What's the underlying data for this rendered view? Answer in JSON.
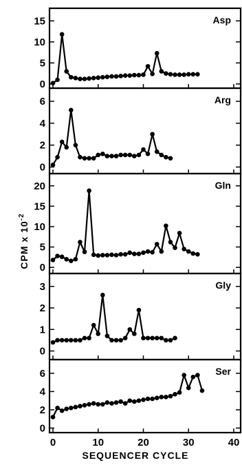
{
  "chart_data": {
    "type": "line",
    "layout": "stacked panels sharing x axis",
    "xlabel": "SEQUENCER CYCLE",
    "ylabel": "CPM x 10",
    "ylabel_exponent": "-2",
    "xlim": [
      0,
      40
    ],
    "x_ticks": [
      "0",
      "10",
      "20",
      "30",
      "40"
    ],
    "grid": false,
    "panels": [
      {
        "name": "Asp",
        "ylim": [
          -1,
          18
        ],
        "y_ticks": [
          "0",
          "5",
          "10",
          "15"
        ],
        "x": [
          0,
          1,
          2,
          3,
          4,
          5,
          6,
          7,
          8,
          9,
          10,
          11,
          12,
          13,
          14,
          15,
          16,
          17,
          18,
          19,
          20,
          21,
          22,
          23,
          24,
          25,
          26,
          27,
          28,
          29,
          30,
          31,
          32
        ],
        "values": [
          0.2,
          1.0,
          11.8,
          3.0,
          1.6,
          1.4,
          1.2,
          1.2,
          1.3,
          1.4,
          1.5,
          1.6,
          1.7,
          1.8,
          1.8,
          1.9,
          2.0,
          2.0,
          2.1,
          2.1,
          2.2,
          4.2,
          2.4,
          7.3,
          3.0,
          2.5,
          2.3,
          2.2,
          2.2,
          2.2,
          2.3,
          2.3,
          2.3
        ]
      },
      {
        "name": "Arg",
        "ylim": [
          -0.6,
          7.2
        ],
        "y_ticks": [
          "0",
          "2",
          "4",
          "6"
        ],
        "x": [
          0,
          1,
          2,
          3,
          4,
          5,
          6,
          7,
          8,
          9,
          10,
          11,
          12,
          13,
          14,
          15,
          16,
          17,
          18,
          19,
          20,
          21,
          22,
          23,
          24,
          25,
          26
        ],
        "values": [
          0.2,
          0.9,
          2.3,
          1.8,
          5.2,
          2.0,
          0.9,
          0.8,
          0.8,
          0.8,
          1.1,
          1.2,
          1.0,
          1.0,
          1.0,
          1.1,
          1.1,
          1.1,
          1.0,
          1.1,
          1.6,
          1.2,
          3.0,
          1.4,
          1.1,
          0.9,
          0.8
        ]
      },
      {
        "name": "Gln",
        "ylim": [
          -1.5,
          23
        ],
        "y_ticks": [
          "0",
          "5",
          "10",
          "15",
          "20"
        ],
        "x": [
          0,
          1,
          2,
          3,
          4,
          5,
          6,
          7,
          8,
          9,
          10,
          11,
          12,
          13,
          14,
          15,
          16,
          17,
          18,
          19,
          20,
          21,
          22,
          23,
          24,
          25,
          26,
          27,
          28,
          29,
          30,
          31,
          32
        ],
        "values": [
          1.8,
          2.8,
          2.6,
          2.0,
          1.6,
          2.0,
          6.2,
          3.8,
          18.8,
          3.1,
          2.9,
          3.0,
          3.0,
          3.1,
          3.0,
          3.2,
          3.2,
          3.6,
          3.3,
          3.3,
          3.6,
          3.9,
          3.7,
          5.7,
          3.9,
          10.2,
          6.2,
          4.8,
          8.4,
          4.5,
          3.9,
          3.4,
          3.2
        ]
      },
      {
        "name": "Gly",
        "ylim": [
          -0.4,
          3.6
        ],
        "y_ticks": [
          "0",
          "1",
          "2",
          "3"
        ],
        "x": [
          0,
          1,
          2,
          3,
          4,
          5,
          6,
          7,
          8,
          9,
          10,
          11,
          12,
          13,
          14,
          15,
          16,
          17,
          18,
          19,
          20,
          21,
          22,
          23,
          24,
          25,
          26,
          27
        ],
        "values": [
          0.4,
          0.5,
          0.5,
          0.5,
          0.5,
          0.5,
          0.5,
          0.6,
          0.6,
          1.2,
          0.8,
          2.6,
          0.7,
          0.5,
          0.5,
          0.5,
          0.6,
          1.0,
          0.8,
          1.9,
          0.6,
          0.6,
          0.6,
          0.6,
          0.6,
          0.5,
          0.5,
          0.6
        ]
      },
      {
        "name": "Ser",
        "ylim": [
          -0.5,
          7.5
        ],
        "y_ticks": [
          "0",
          "2",
          "4",
          "6"
        ],
        "x": [
          0,
          1,
          2,
          3,
          4,
          5,
          6,
          7,
          8,
          9,
          10,
          11,
          12,
          13,
          14,
          15,
          16,
          17,
          18,
          19,
          20,
          21,
          22,
          23,
          24,
          25,
          26,
          27,
          28,
          29,
          30,
          31,
          32,
          33
        ],
        "values": [
          1.2,
          2.2,
          1.9,
          2.1,
          2.2,
          2.3,
          2.4,
          2.5,
          2.6,
          2.7,
          2.6,
          2.6,
          2.8,
          2.7,
          2.8,
          2.9,
          2.7,
          3.0,
          2.9,
          3.0,
          3.1,
          3.2,
          3.2,
          3.3,
          3.4,
          3.4,
          3.5,
          3.7,
          3.9,
          5.8,
          4.4,
          5.6,
          5.8,
          4.1
        ]
      }
    ]
  }
}
